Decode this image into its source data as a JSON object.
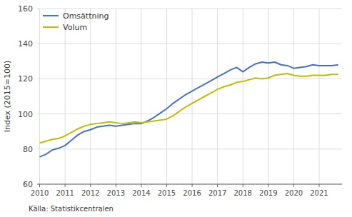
{
  "chart_data": {
    "type": "line",
    "ylabel": "Index (2015=100)",
    "source": "Källa: Statistikcentralen",
    "x": [
      2010,
      2010.25,
      2010.5,
      2010.75,
      2011,
      2011.25,
      2011.5,
      2011.75,
      2012,
      2012.25,
      2012.5,
      2012.75,
      2013,
      2013.25,
      2013.5,
      2013.75,
      2014,
      2014.25,
      2014.5,
      2014.75,
      2015,
      2015.25,
      2015.5,
      2015.75,
      2016,
      2016.25,
      2016.5,
      2016.75,
      2017,
      2017.25,
      2017.5,
      2017.75,
      2018,
      2018.25,
      2018.5,
      2018.75,
      2019,
      2019.25,
      2019.5,
      2019.75,
      2020,
      2020.25,
      2020.5,
      2020.75,
      2021,
      2021.25,
      2021.5,
      2021.75
    ],
    "series": [
      {
        "name": "Omsättning",
        "color": "#4472C4",
        "values": [
          75.5,
          77.0,
          79.5,
          80.5,
          82.0,
          85.0,
          88.0,
          90.0,
          91.0,
          92.5,
          93.0,
          93.5,
          93.0,
          93.5,
          94.0,
          94.5,
          94.5,
          96.0,
          98.0,
          100.5,
          103.0,
          106.0,
          108.5,
          111.0,
          113.0,
          115.0,
          117.0,
          119.0,
          121.0,
          123.0,
          125.0,
          126.5,
          124.0,
          126.5,
          128.5,
          129.5,
          129.0,
          129.5,
          128.0,
          127.5,
          126.0,
          126.5,
          127.0,
          128.0,
          127.5,
          127.5,
          127.5,
          128.0
        ]
      },
      {
        "name": "Volum",
        "color": "#BFBF00",
        "values": [
          83.5,
          84.5,
          85.5,
          86.0,
          87.5,
          89.5,
          91.5,
          93.0,
          94.0,
          94.5,
          95.0,
          95.5,
          95.0,
          94.5,
          95.0,
          95.5,
          95.0,
          95.5,
          96.0,
          96.5,
          97.0,
          99.0,
          101.5,
          104.0,
          106.0,
          108.0,
          110.0,
          112.0,
          114.0,
          115.5,
          116.5,
          118.0,
          118.5,
          119.5,
          120.5,
          120.0,
          120.5,
          122.0,
          122.5,
          123.0,
          122.0,
          121.5,
          121.5,
          122.0,
          122.0,
          122.0,
          122.5,
          122.5
        ]
      }
    ],
    "xlim": [
      2009.9,
      2021.9
    ],
    "xticks": [
      2010,
      2011,
      2012,
      2013,
      2014,
      2015,
      2016,
      2017,
      2018,
      2019,
      2020,
      2021
    ],
    "ylim": [
      60,
      160
    ],
    "yticks": [
      60,
      80,
      100,
      120,
      140,
      160
    ],
    "grid": true,
    "legend": "upper left"
  }
}
